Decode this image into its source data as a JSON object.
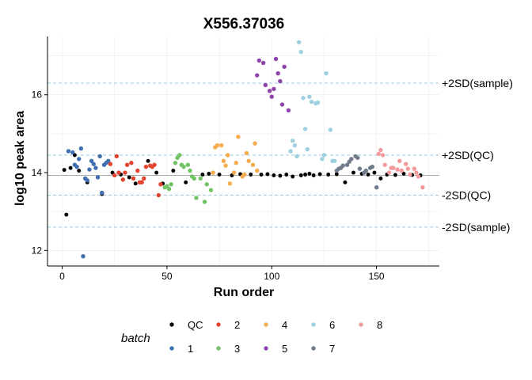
{
  "chart_data": {
    "type": "scatter",
    "title": "X556.37036",
    "xlabel": "Run order",
    "ylabel": "log10 peak area",
    "xlim": [
      -7,
      180
    ],
    "ylim": [
      11.6,
      17.5
    ],
    "xticks": [
      0,
      50,
      100,
      150
    ],
    "yticks": [
      12,
      14,
      16
    ],
    "grid": true,
    "legend_title": "batch",
    "legend_position": "bottom",
    "reference_lines": [
      {
        "label": "+2SD(sample)",
        "y": 16.3,
        "color": "#9ecae1",
        "style": "dashed"
      },
      {
        "label": "+2SD(QC)",
        "y": 14.45,
        "color": "#9ecae1",
        "style": "dashed"
      },
      {
        "label": "",
        "y": 13.93,
        "color": "#aaaaaa",
        "style": "solid"
      },
      {
        "label": "-2SD(QC)",
        "y": 13.42,
        "color": "#9ecae1",
        "style": "dashed"
      },
      {
        "label": "-2SD(sample)",
        "y": 12.6,
        "color": "#9ecae1",
        "style": "dashed"
      }
    ],
    "series": [
      {
        "name": "QC",
        "color": "#000000",
        "points": [
          [
            1,
            14.07
          ],
          [
            2,
            12.92
          ],
          [
            4,
            14.12
          ],
          [
            6,
            14.45
          ],
          [
            8,
            14.05
          ],
          [
            12,
            13.75
          ],
          [
            19,
            13.45
          ],
          [
            24,
            14.0
          ],
          [
            28,
            13.95
          ],
          [
            32,
            13.88
          ],
          [
            35,
            13.72
          ],
          [
            41,
            14.3
          ],
          [
            45,
            14.0
          ],
          [
            48,
            13.72
          ],
          [
            53,
            14.05
          ],
          [
            59,
            13.75
          ],
          [
            67,
            13.95
          ],
          [
            70,
            13.97
          ],
          [
            75,
            13.95
          ],
          [
            81,
            13.93
          ],
          [
            85,
            13.96
          ],
          [
            90,
            13.95
          ],
          [
            95,
            13.95
          ],
          [
            98,
            13.96
          ],
          [
            101,
            13.93
          ],
          [
            104,
            13.92
          ],
          [
            107,
            13.95
          ],
          [
            110,
            13.9
          ],
          [
            114,
            13.93
          ],
          [
            116,
            13.95
          ],
          [
            118,
            13.97
          ],
          [
            120,
            13.93
          ],
          [
            123,
            13.96
          ],
          [
            127,
            13.95
          ],
          [
            131,
            13.96
          ],
          [
            135,
            13.75
          ],
          [
            139,
            14.0
          ],
          [
            143,
            13.97
          ],
          [
            146,
            13.95
          ],
          [
            149,
            14.0
          ],
          [
            152,
            13.85
          ],
          [
            155,
            13.95
          ],
          [
            159,
            13.94
          ],
          [
            163,
            13.97
          ],
          [
            167,
            13.94
          ],
          [
            171,
            13.93
          ]
        ]
      },
      {
        "name": "1",
        "color": "#3f6fb0",
        "points": [
          [
            3,
            14.55
          ],
          [
            5,
            14.52
          ],
          [
            6,
            14.2
          ],
          [
            7,
            14.15
          ],
          [
            8,
            14.35
          ],
          [
            9,
            14.62
          ],
          [
            10,
            11.85
          ],
          [
            11,
            13.85
          ],
          [
            12,
            13.8
          ],
          [
            13,
            14.08
          ],
          [
            14,
            14.3
          ],
          [
            15,
            14.22
          ],
          [
            16,
            14.12
          ],
          [
            17,
            13.88
          ],
          [
            18,
            14.42
          ],
          [
            19,
            13.48
          ],
          [
            20,
            14.2
          ],
          [
            21,
            14.25
          ],
          [
            22,
            14.3
          ]
        ]
      },
      {
        "name": "2",
        "color": "#e2452f",
        "points": [
          [
            23,
            14.22
          ],
          [
            25,
            13.93
          ],
          [
            26,
            14.42
          ],
          [
            27,
            14.0
          ],
          [
            29,
            13.82
          ],
          [
            30,
            14.0
          ],
          [
            31,
            14.2
          ],
          [
            33,
            14.25
          ],
          [
            34,
            13.85
          ],
          [
            36,
            14.05
          ],
          [
            37,
            13.75
          ],
          [
            38,
            13.75
          ],
          [
            39,
            13.85
          ],
          [
            40,
            14.15
          ],
          [
            42,
            14.18
          ],
          [
            43,
            14.15
          ],
          [
            44,
            14.2
          ],
          [
            46,
            13.42
          ],
          [
            47,
            13.7
          ]
        ]
      },
      {
        "name": "3",
        "color": "#72c266",
        "points": [
          [
            49,
            13.62
          ],
          [
            50,
            13.65
          ],
          [
            51,
            13.58
          ],
          [
            52,
            13.7
          ],
          [
            54,
            14.25
          ],
          [
            55,
            14.38
          ],
          [
            56,
            14.45
          ],
          [
            57,
            14.2
          ],
          [
            58,
            14.15
          ],
          [
            60,
            14.2
          ],
          [
            61,
            14.05
          ],
          [
            62,
            13.9
          ],
          [
            63,
            13.85
          ],
          [
            64,
            13.35
          ],
          [
            66,
            13.85
          ],
          [
            68,
            13.25
          ],
          [
            69,
            13.7
          ],
          [
            71,
            13.55
          ]
        ]
      },
      {
        "name": "4",
        "color": "#f5ac4e",
        "points": [
          [
            72,
            14.0
          ],
          [
            73,
            14.65
          ],
          [
            74,
            14.7
          ],
          [
            76,
            14.7
          ],
          [
            77,
            14.3
          ],
          [
            78,
            14.18
          ],
          [
            79,
            14.45
          ],
          [
            80,
            13.72
          ],
          [
            82,
            14.0
          ],
          [
            83,
            14.25
          ],
          [
            84,
            14.92
          ],
          [
            86,
            13.9
          ],
          [
            87,
            13.95
          ],
          [
            88,
            14.5
          ],
          [
            89,
            14.3
          ],
          [
            91,
            14.2
          ],
          [
            92,
            14.75
          ],
          [
            93,
            14.05
          ]
        ]
      },
      {
        "name": "5",
        "color": "#8e44a8",
        "points": [
          [
            93,
            16.5
          ],
          [
            94,
            16.88
          ],
          [
            96,
            16.82
          ],
          [
            97,
            16.25
          ],
          [
            99,
            16.1
          ],
          [
            100,
            15.95
          ],
          [
            101,
            16.15
          ],
          [
            102,
            16.92
          ],
          [
            103,
            16.55
          ],
          [
            104,
            16.35
          ],
          [
            105,
            15.75
          ],
          [
            106,
            16.72
          ],
          [
            108,
            15.6
          ]
        ]
      },
      {
        "name": "6",
        "color": "#9dd1e2",
        "points": [
          [
            109,
            14.55
          ],
          [
            110,
            14.82
          ],
          [
            111,
            14.7
          ],
          [
            112,
            14.42
          ],
          [
            113,
            17.35
          ],
          [
            114,
            17.1
          ],
          [
            115,
            15.92
          ],
          [
            116,
            15.12
          ],
          [
            117,
            14.6
          ],
          [
            118,
            15.95
          ],
          [
            119,
            15.82
          ],
          [
            121,
            15.78
          ],
          [
            122,
            15.8
          ],
          [
            124,
            14.35
          ],
          [
            125,
            14.45
          ],
          [
            126,
            16.55
          ],
          [
            128,
            15.1
          ],
          [
            129,
            14.3
          ],
          [
            130,
            14.3
          ]
        ]
      },
      {
        "name": "7",
        "color": "#707b8c",
        "points": [
          [
            131,
            14.05
          ],
          [
            132,
            14.1
          ],
          [
            133,
            14.12
          ],
          [
            134,
            14.18
          ],
          [
            136,
            14.2
          ],
          [
            137,
            14.28
          ],
          [
            138,
            14.35
          ],
          [
            140,
            14.42
          ],
          [
            141,
            14.38
          ],
          [
            142,
            14.1
          ],
          [
            144,
            14.0
          ],
          [
            145,
            14.05
          ],
          [
            147,
            14.12
          ],
          [
            148,
            14.15
          ],
          [
            150,
            13.62
          ]
        ]
      },
      {
        "name": "8",
        "color": "#f39a9c",
        "points": [
          [
            151,
            14.48
          ],
          [
            152,
            14.58
          ],
          [
            153,
            14.45
          ],
          [
            154,
            14.2
          ],
          [
            156,
            14.0
          ],
          [
            157,
            14.12
          ],
          [
            158,
            14.12
          ],
          [
            160,
            14.08
          ],
          [
            161,
            14.3
          ],
          [
            162,
            14.05
          ],
          [
            164,
            14.22
          ],
          [
            165,
            14.1
          ],
          [
            166,
            13.95
          ],
          [
            168,
            14.1
          ],
          [
            169,
            14.0
          ],
          [
            170,
            13.9
          ],
          [
            172,
            13.62
          ]
        ]
      }
    ]
  }
}
